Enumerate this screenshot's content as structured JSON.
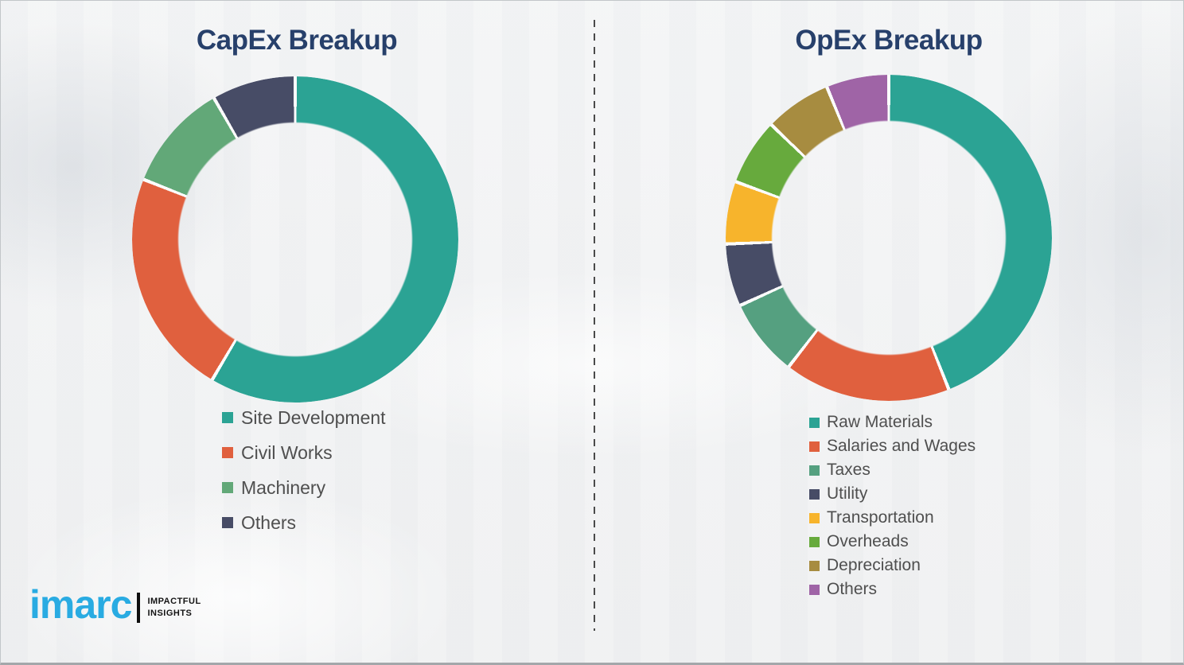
{
  "titles": {
    "capex": "CapEx Breakup",
    "opex": "OpEx Breakup"
  },
  "chart_data": [
    {
      "type": "pie",
      "variant": "donut",
      "title": "CapEx Breakup",
      "labels": [
        "Site Development",
        "Civil Works",
        "Machinery",
        "Others"
      ],
      "values": [
        58.5,
        22.5,
        10.7,
        8.3
      ],
      "unit": "percent-estimated",
      "colors": [
        "#2BA394",
        "#E0603E",
        "#62A878",
        "#474C66"
      ],
      "start_angle_deg": 0,
      "direction": "clockwise",
      "legend_position": "below-chart-left",
      "data_labels": "none"
    },
    {
      "type": "pie",
      "variant": "donut",
      "title": "OpEx Breakup",
      "labels": [
        "Raw Materials",
        "Salaries and Wages",
        "Taxes",
        "Utility",
        "Transportation",
        "Overheads",
        "Depreciation",
        "Others"
      ],
      "values": [
        44.0,
        16.5,
        7.7,
        6.2,
        6.2,
        6.6,
        6.6,
        6.2
      ],
      "unit": "percent-estimated",
      "colors": [
        "#2BA394",
        "#E0603E",
        "#55A080",
        "#474C66",
        "#F7B42C",
        "#67AA3D",
        "#A78C40",
        "#9F64A6"
      ],
      "start_angle_deg": 0,
      "direction": "clockwise",
      "legend_position": "below-chart-left",
      "data_labels": "none"
    }
  ],
  "logo": {
    "brand": "imarc",
    "tagline_line1": "IMPACTFUL",
    "tagline_line2": "INSIGHTS",
    "brand_color": "#29ABE2"
  },
  "colors": {
    "title": "#27406B",
    "legend_text": "#4F4F4F",
    "divider": "#4A4A4A",
    "background": "#F2F3F4",
    "segment_gap": "#FCFCFC"
  }
}
